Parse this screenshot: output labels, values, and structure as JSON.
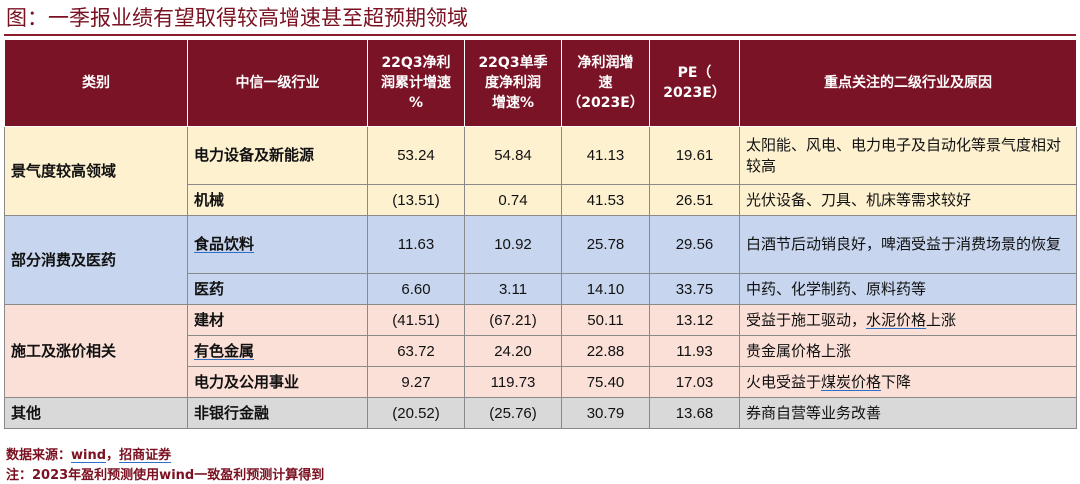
{
  "title": "图：一季报业绩有望取得较高增速甚至超预期领域",
  "table": {
    "headers": {
      "category": "类别",
      "industry": "中信一级行业",
      "cum_growth": [
        "22Q3净利",
        "润累计增速",
        "%"
      ],
      "quarter_growth": [
        "22Q3单季",
        "度净利润",
        "增速%"
      ],
      "profit_growth": [
        "净利润增",
        "速",
        "（2023E）"
      ],
      "pe": [
        "PE（",
        "2023E）"
      ],
      "reason": "重点关注的二级行业及原因"
    },
    "groups": [
      {
        "category": "景气度较高领域",
        "rows": [
          {
            "industry": "电力设备及新能源",
            "cum": "53.24",
            "q3": "54.84",
            "np": "41.13",
            "pe": "19.61",
            "reason": "太阳能、风电、电力电子及自动化等景气度相对较高"
          },
          {
            "industry": "机械",
            "cum": "(13.51)",
            "q3": "0.74",
            "np": "41.53",
            "pe": "26.51",
            "reason": "光伏设备、刀具、机床等需求较好"
          }
        ]
      },
      {
        "category": "部分消费及医药",
        "rows": [
          {
            "industry": "食品饮料",
            "cum": "11.63",
            "q3": "10.92",
            "np": "25.78",
            "pe": "29.56",
            "reason": "白酒节后动销良好，啤酒受益于消费场景的恢复"
          },
          {
            "industry": "医药",
            "cum": "6.60",
            "q3": "3.11",
            "np": "14.10",
            "pe": "33.75",
            "reason": "中药、化学制药、原料药等"
          }
        ]
      },
      {
        "category": "施工及涨价相关",
        "rows": [
          {
            "industry": "建材",
            "cum": "(41.51)",
            "q3": "(67.21)",
            "np": "50.11",
            "pe": "13.12",
            "reason_pre": "受益于施工驱动，",
            "reason_link": "水泥价格",
            "reason_post": "上涨"
          },
          {
            "industry": "有色金属",
            "cum": "63.72",
            "q3": "24.20",
            "np": "22.88",
            "pe": "11.93",
            "reason": "贵金属价格上涨"
          },
          {
            "industry": "电力及公用事业",
            "cum": "9.27",
            "q3": "119.73",
            "np": "75.40",
            "pe": "17.03",
            "reason_pre": "火电受益于",
            "reason_link": "煤炭价格",
            "reason_post": "下降"
          }
        ]
      },
      {
        "category": "其他",
        "rows": [
          {
            "industry": "非银行金融",
            "cum": "(20.52)",
            "q3": "(25.76)",
            "np": "30.79",
            "pe": "13.68",
            "reason": "券商自营等业务改善"
          }
        ]
      }
    ]
  },
  "footnotes": {
    "source_pre": "数据来源：",
    "source_wind": "wind",
    "source_sep": "，",
    "source_broker": "招商证券",
    "note": "注：2023年盈利预测使用wind一致盈利预测计算得到"
  },
  "colors": {
    "header_bg": "#7b1326",
    "title_text": "#7a1020",
    "group1_bg": "#fdf1d0",
    "group2_bg": "#c7d5ef",
    "group3_bg": "#fbe0d8",
    "group4_bg": "#d9d9d9",
    "link_underline": "#2f6fc8"
  }
}
